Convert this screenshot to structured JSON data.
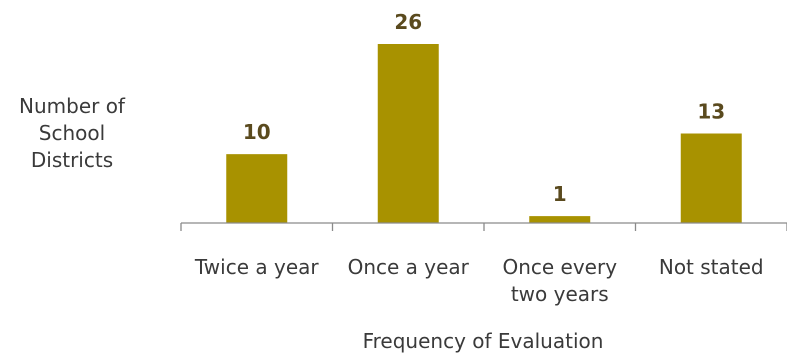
{
  "chart_data": {
    "type": "bar",
    "categories": [
      [
        "Twice a year"
      ],
      [
        "Once a year"
      ],
      [
        "Once every",
        "two years"
      ],
      [
        "Not stated"
      ]
    ],
    "values": [
      10,
      26,
      1,
      13
    ],
    "title": "",
    "xlabel": "Frequency of Evaluation",
    "ylabel": [
      "Number of",
      "School",
      "Districts"
    ],
    "ylim": [
      0,
      26
    ],
    "grid": false,
    "legend": "none",
    "colors": {
      "bar": "#a89200",
      "value_label": "#5a4a1e",
      "axis": "#8a8a8a",
      "text": "#3a3a3a"
    }
  }
}
